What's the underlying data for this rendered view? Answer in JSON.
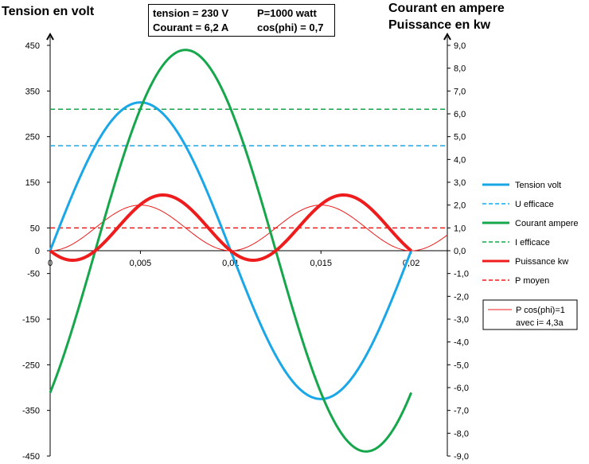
{
  "titles": {
    "left": "Tension en volt",
    "right_line1": "Courant en ampere",
    "right_line2": "Puissance en kw"
  },
  "info_box": {
    "line1_left": "tension = 230 V",
    "line1_right": "P=1000 watt",
    "line2_left": "Courant = 6,2 A",
    "line2_right": "cos(phi) = 0,7"
  },
  "chart_data": {
    "type": "line",
    "x_range": [
      0,
      0.022
    ],
    "x_ticks": [
      "0",
      "0,005",
      "0,01",
      "0,015",
      "0,02"
    ],
    "y_left_range": [
      -450,
      450
    ],
    "y_left_ticks": [
      "450",
      "350",
      "250",
      "150",
      "50",
      "0",
      "-50",
      "-150",
      "-250",
      "-350",
      "-450"
    ],
    "y_right_range": [
      -9,
      9
    ],
    "y_right_ticks": [
      "9,0",
      "8,0",
      "7,0",
      "6,0",
      "5,0",
      "4,0",
      "3,0",
      "2,0",
      "1,0",
      "0,0",
      "-1,0",
      "-2,0",
      "-3,0",
      "-4,0",
      "-5,0",
      "-6,0",
      "-7,0",
      "-8,0",
      "-9,0"
    ],
    "grid": false,
    "legend_position": "right",
    "series": [
      {
        "name": "Tension volt",
        "axis": "left",
        "color": "#1aa7e8",
        "width": 3,
        "dash": "",
        "formula": "325*sin(2*pi*50*t)",
        "t_end": 0.02
      },
      {
        "name": "U efficace",
        "axis": "left",
        "color": "#1aa7e8",
        "width": 1.5,
        "dash": "6,4",
        "constant": 230
      },
      {
        "name": "Courant ampere",
        "axis": "right",
        "color": "#16a64b",
        "width": 3,
        "dash": "",
        "formula": "8.8*sin(2*pi*50*t - 0.785)",
        "t_end": 0.02
      },
      {
        "name": "I efficace",
        "axis": "right",
        "color": "#16a64b",
        "width": 1.5,
        "dash": "6,4",
        "constant": 6.2
      },
      {
        "name": "Puissance kw",
        "axis": "right",
        "color": "#ee1c1c",
        "width": 4,
        "dash": "",
        "formula": "1.43*(cos(0.785) - cos(2*(2*pi*50*t) - 0.785))",
        "t_end": 0.02
      },
      {
        "name": "P moyen",
        "axis": "right",
        "color": "#ee1c1c",
        "width": 1.5,
        "dash": "6,4",
        "constant": 1.0
      },
      {
        "name": "P cos(phi)=1 avec i= 4,3a",
        "legend_line1": "P cos(phi)=1",
        "legend_line2": "avec i= 4,3a",
        "axis": "right",
        "color": "#ee1c1c",
        "width": 1,
        "dash": "",
        "formula": "1 - cos(2*(2*pi*50*t))",
        "t_end": 0.022
      }
    ]
  }
}
